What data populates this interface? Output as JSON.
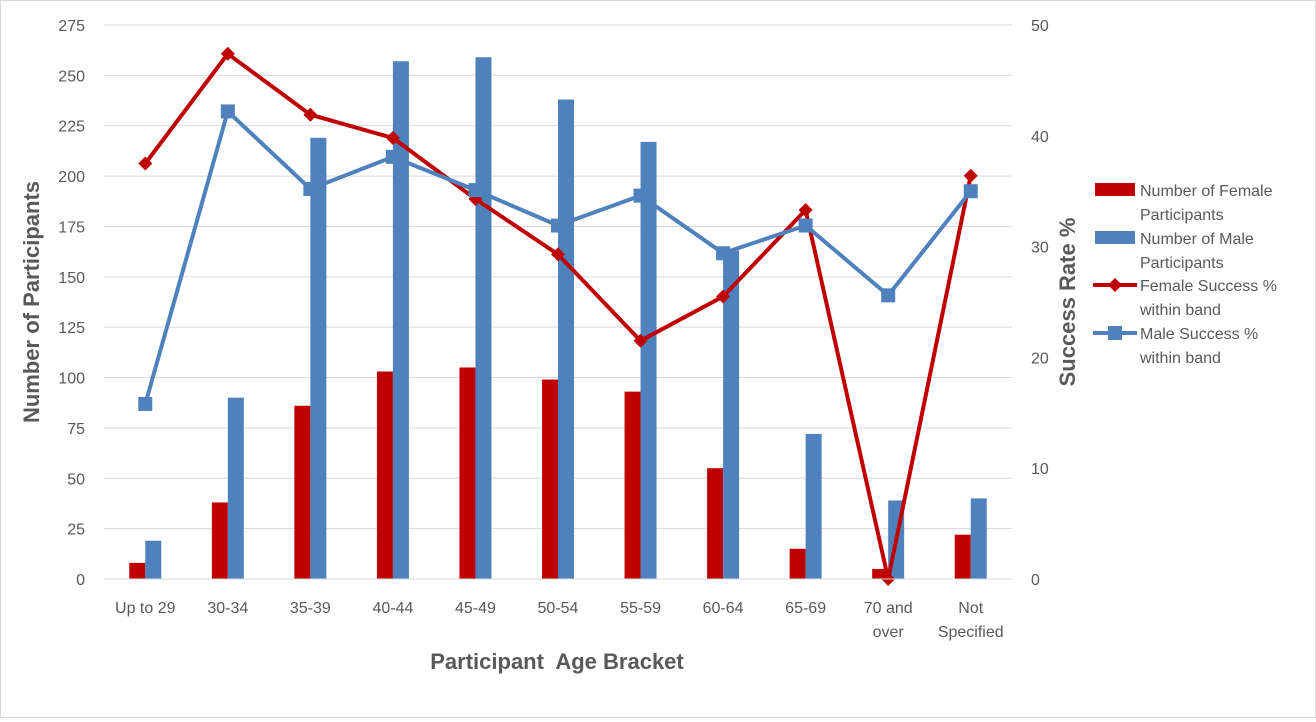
{
  "chart_data": {
    "type": "bar",
    "categories": [
      [
        "Up to 29"
      ],
      [
        "30-34"
      ],
      [
        "35-39"
      ],
      [
        "40-44"
      ],
      [
        "45-49"
      ],
      [
        "50-54"
      ],
      [
        "55-59"
      ],
      [
        "60-64"
      ],
      [
        "65-69"
      ],
      [
        "70 and",
        "over"
      ],
      [
        "Not",
        "Specified"
      ]
    ],
    "series": [
      {
        "name": "Number of Female Participants",
        "legend_lines": [
          "Number of Female",
          "Participants"
        ],
        "kind": "bar",
        "axis": "left",
        "color": "#C00000",
        "values": [
          8,
          38,
          86,
          103,
          105,
          99,
          93,
          55,
          15,
          5,
          22
        ]
      },
      {
        "name": "Number of Male Participants",
        "legend_lines": [
          "Number of Male",
          "Participants"
        ],
        "kind": "bar",
        "axis": "left",
        "color": "#4F81BD",
        "values": [
          19,
          90,
          219,
          257,
          259,
          238,
          217,
          163,
          72,
          39,
          40
        ]
      },
      {
        "name": "Female Success % within band",
        "legend_lines": [
          "Female Success %",
          "within band"
        ],
        "kind": "line",
        "marker": "diamond",
        "axis": "right",
        "color": "#C00000",
        "values": [
          37.5,
          47.4,
          41.9,
          39.8,
          34.3,
          29.3,
          21.5,
          25.5,
          33.3,
          0,
          36.4
        ]
      },
      {
        "name": "Male Success % within band",
        "legend_lines": [
          "Male Success %",
          "within band"
        ],
        "kind": "line",
        "marker": "square",
        "axis": "right",
        "color": "#4F81BD",
        "values": [
          15.8,
          42.2,
          35.2,
          38.1,
          35.1,
          31.9,
          34.6,
          29.4,
          31.9,
          25.6,
          35.0
        ]
      }
    ],
    "xlabel": "Participant  Age Bracket",
    "ylabel": "Number of Participants",
    "y2label": "Success Rate %",
    "ylim": [
      0,
      275
    ],
    "y2lim": [
      0,
      50
    ],
    "yticks": [
      0,
      25,
      50,
      75,
      100,
      125,
      150,
      175,
      200,
      225,
      250,
      275
    ],
    "y2ticks": [
      0,
      10,
      20,
      30,
      40,
      50
    ],
    "grid": true,
    "legend_position": "right"
  }
}
